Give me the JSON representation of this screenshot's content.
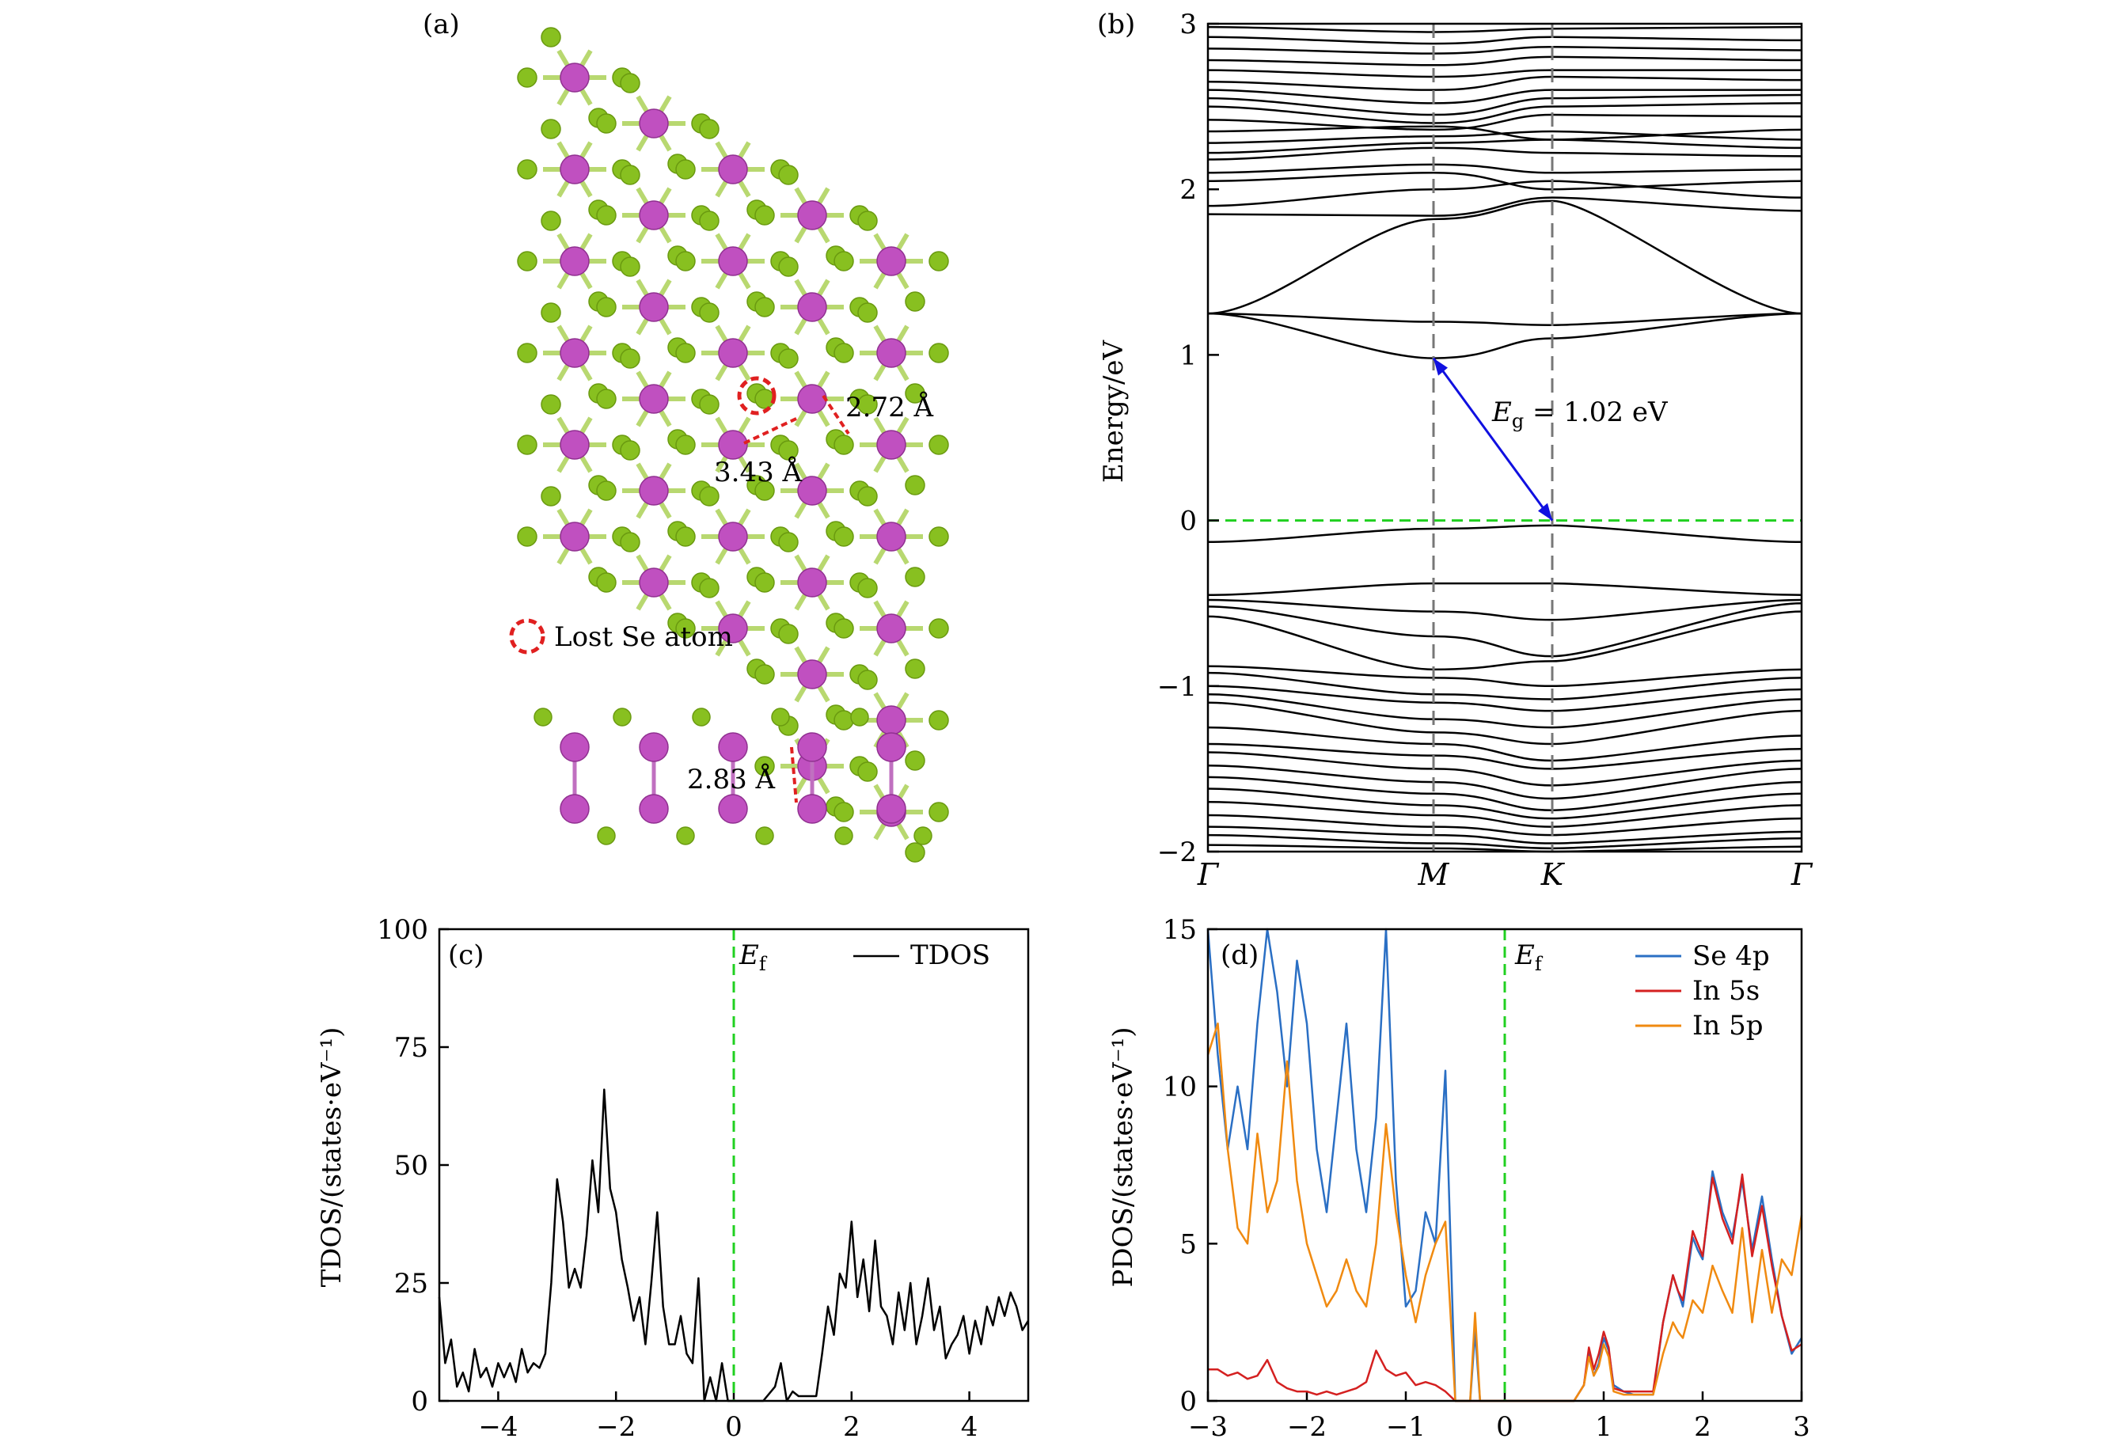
{
  "figure": {
    "panels": {
      "a": {
        "label": "(a)",
        "legend_text": "Lost Se atom",
        "distance_top": "2.72 Å",
        "distance_mid": "3.43 Å",
        "distance_side": "2.83 Å",
        "colors": {
          "in_atom": "#c050c0",
          "se_atom": "#88c020",
          "marker": "#e02020"
        }
      }
    }
  },
  "chart_data": [
    {
      "panel": "(b)",
      "type": "line",
      "title": "",
      "ylabel": "Energy/eV",
      "ylim": [
        -2,
        3
      ],
      "yticks": [
        "3",
        "2",
        "1",
        "0",
        "−1",
        "−2"
      ],
      "xticks": [
        "Γ",
        "M",
        "K",
        "Γ"
      ],
      "fermi_level": 0,
      "gap_label_main": "E",
      "gap_label_sub": "g",
      "gap_label_value": " = 1.02 eV",
      "gap": {
        "from": [
          0.38,
          0.98
        ],
        "to": [
          0.58,
          0
        ]
      },
      "bands": [
        {
          "name": "cb1",
          "y": [
            1.25,
            0.98,
            1.1,
            1.25
          ]
        },
        {
          "name": "cb2",
          "y": [
            1.25,
            1.2,
            1.18,
            1.25
          ]
        },
        {
          "name": "cb3",
          "y": [
            1.25,
            1.82,
            1.93,
            1.25
          ]
        },
        {
          "name": "cb4",
          "y": [
            1.85,
            1.84,
            1.95,
            1.87
          ]
        },
        {
          "name": "cb5",
          "y": [
            1.9,
            2.0,
            2.05,
            1.95
          ]
        },
        {
          "name": "cb6",
          "y": [
            2.05,
            2.1,
            2.0,
            2.05
          ]
        },
        {
          "name": "cb7",
          "y": [
            2.1,
            2.15,
            2.1,
            2.12
          ]
        },
        {
          "name": "cb8",
          "y": [
            2.18,
            2.25,
            2.22,
            2.2
          ]
        },
        {
          "name": "cb9",
          "y": [
            2.22,
            2.28,
            2.3,
            2.25
          ]
        },
        {
          "name": "cb10",
          "y": [
            2.28,
            2.32,
            2.35,
            2.3
          ]
        },
        {
          "name": "cb11",
          "y": [
            2.35,
            2.38,
            2.3,
            2.36
          ]
        },
        {
          "name": "cb12",
          "y": [
            2.42,
            2.36,
            2.45,
            2.44
          ]
        },
        {
          "name": "cb13",
          "y": [
            2.5,
            2.4,
            2.5,
            2.52
          ]
        },
        {
          "name": "cb14",
          "y": [
            2.55,
            2.45,
            2.55,
            2.57
          ]
        },
        {
          "name": "cb15",
          "y": [
            2.6,
            2.52,
            2.6,
            2.6
          ]
        },
        {
          "name": "cb16",
          "y": [
            2.65,
            2.6,
            2.68,
            2.66
          ]
        },
        {
          "name": "cb17",
          "y": [
            2.72,
            2.68,
            2.72,
            2.72
          ]
        },
        {
          "name": "cb18",
          "y": [
            2.78,
            2.75,
            2.8,
            2.78
          ]
        },
        {
          "name": "cb19",
          "y": [
            2.85,
            2.82,
            2.86,
            2.84
          ]
        },
        {
          "name": "cb20",
          "y": [
            2.92,
            2.88,
            2.92,
            2.9
          ]
        },
        {
          "name": "cb21",
          "y": [
            2.98,
            2.95,
            2.97,
            2.98
          ]
        },
        {
          "name": "vb0",
          "y": [
            -0.13,
            -0.05,
            -0.03,
            -0.13
          ]
        },
        {
          "name": "vb1",
          "y": [
            -0.45,
            -0.38,
            -0.38,
            -0.45
          ]
        },
        {
          "name": "vb2",
          "y": [
            -0.48,
            -0.55,
            -0.6,
            -0.48
          ]
        },
        {
          "name": "vb3",
          "y": [
            -0.52,
            -0.7,
            -0.82,
            -0.5
          ]
        },
        {
          "name": "vb4",
          "y": [
            -0.58,
            -0.9,
            -0.85,
            -0.55
          ]
        },
        {
          "name": "vb5",
          "y": [
            -0.88,
            -0.95,
            -1.0,
            -0.9
          ]
        },
        {
          "name": "vb6",
          "y": [
            -0.92,
            -1.05,
            -1.08,
            -0.95
          ]
        },
        {
          "name": "vb7",
          "y": [
            -1.0,
            -1.1,
            -1.15,
            -1.02
          ]
        },
        {
          "name": "vb8",
          "y": [
            -1.05,
            -1.2,
            -1.25,
            -1.08
          ]
        },
        {
          "name": "vb9",
          "y": [
            -1.1,
            -1.28,
            -1.35,
            -1.15
          ]
        },
        {
          "name": "vb10",
          "y": [
            -1.25,
            -1.35,
            -1.45,
            -1.3
          ]
        },
        {
          "name": "vb11",
          "y": [
            -1.35,
            -1.42,
            -1.5,
            -1.38
          ]
        },
        {
          "name": "vb12",
          "y": [
            -1.4,
            -1.5,
            -1.6,
            -1.45
          ]
        },
        {
          "name": "vb13",
          "y": [
            -1.48,
            -1.58,
            -1.68,
            -1.5
          ]
        },
        {
          "name": "vb14",
          "y": [
            -1.55,
            -1.65,
            -1.75,
            -1.58
          ]
        },
        {
          "name": "vb15",
          "y": [
            -1.62,
            -1.72,
            -1.8,
            -1.65
          ]
        },
        {
          "name": "vb16",
          "y": [
            -1.7,
            -1.78,
            -1.85,
            -1.72
          ]
        },
        {
          "name": "vb17",
          "y": [
            -1.78,
            -1.85,
            -1.9,
            -1.8
          ]
        },
        {
          "name": "vb18",
          "y": [
            -1.85,
            -1.9,
            -1.95,
            -1.88
          ]
        },
        {
          "name": "vb19",
          "y": [
            -1.9,
            -1.95,
            -1.98,
            -1.92
          ]
        },
        {
          "name": "vb20",
          "y": [
            -1.96,
            -1.98,
            -2.0,
            -1.97
          ]
        }
      ]
    },
    {
      "panel": "(c)",
      "type": "line",
      "title": "",
      "ylabel": "TDOS/(states·eV⁻¹)",
      "xlim": [
        -5,
        5
      ],
      "ylim": [
        0,
        100
      ],
      "xticks": [
        "−4",
        "−2",
        "0",
        "2",
        "4"
      ],
      "yticks": [
        "0",
        "25",
        "50",
        "75",
        "100"
      ],
      "fermi_label_main": "E",
      "fermi_label_sub": "f",
      "series": [
        {
          "name": "TDOS",
          "color": "#000000",
          "x": [
            -5.0,
            -4.9,
            -4.8,
            -4.7,
            -4.6,
            -4.5,
            -4.4,
            -4.3,
            -4.2,
            -4.1,
            -4.0,
            -3.9,
            -3.8,
            -3.7,
            -3.6,
            -3.5,
            -3.4,
            -3.3,
            -3.2,
            -3.1,
            -3.0,
            -2.9,
            -2.8,
            -2.7,
            -2.6,
            -2.5,
            -2.4,
            -2.3,
            -2.2,
            -2.1,
            -2.0,
            -1.9,
            -1.8,
            -1.7,
            -1.6,
            -1.5,
            -1.4,
            -1.3,
            -1.2,
            -1.1,
            -1.0,
            -0.9,
            -0.8,
            -0.7,
            -0.6,
            -0.5,
            -0.4,
            -0.3,
            -0.2,
            -0.1,
            0.0,
            0.5,
            0.7,
            0.8,
            0.9,
            1.0,
            1.1,
            1.2,
            1.3,
            1.4,
            1.5,
            1.6,
            1.7,
            1.8,
            1.9,
            2.0,
            2.1,
            2.2,
            2.3,
            2.4,
            2.5,
            2.6,
            2.7,
            2.8,
            2.9,
            3.0,
            3.1,
            3.2,
            3.3,
            3.4,
            3.5,
            3.6,
            3.7,
            3.8,
            3.9,
            4.0,
            4.1,
            4.2,
            4.3,
            4.4,
            4.5,
            4.6,
            4.7,
            4.8,
            4.9,
            5.0
          ],
          "y": [
            22,
            8,
            13,
            3,
            6,
            2,
            11,
            5,
            7,
            3,
            8,
            5,
            8,
            4,
            11,
            6,
            8,
            7,
            10,
            25,
            47,
            38,
            24,
            28,
            24,
            35,
            51,
            40,
            66,
            45,
            40,
            30,
            24,
            17,
            22,
            12,
            25,
            40,
            20,
            12,
            12,
            18,
            10,
            8,
            26,
            0,
            5,
            0,
            8,
            0,
            0,
            0,
            3,
            8,
            0,
            2,
            1,
            1,
            1,
            1,
            10,
            20,
            14,
            27,
            24,
            38,
            22,
            30,
            19,
            34,
            20,
            18,
            12,
            23,
            15,
            25,
            12,
            18,
            26,
            15,
            20,
            9,
            12,
            14,
            18,
            10,
            17,
            12,
            20,
            16,
            22,
            18,
            23,
            20,
            15,
            17
          ]
        }
      ]
    },
    {
      "panel": "(d)",
      "type": "line",
      "title": "",
      "ylabel": "PDOS/(states·eV⁻¹)",
      "xlim": [
        -3,
        3
      ],
      "ylim": [
        0,
        15
      ],
      "xticks": [
        "−3",
        "−2",
        "−1",
        "0",
        "1",
        "2",
        "3"
      ],
      "yticks": [
        "0",
        "5",
        "10",
        "15"
      ],
      "fermi_label_main": "E",
      "fermi_label_sub": "f",
      "series": [
        {
          "name": "Se 4p",
          "color": "#2a6fc4",
          "x": [
            -3.0,
            -2.9,
            -2.8,
            -2.7,
            -2.6,
            -2.5,
            -2.4,
            -2.3,
            -2.2,
            -2.1,
            -2.0,
            -1.9,
            -1.8,
            -1.7,
            -1.6,
            -1.5,
            -1.4,
            -1.3,
            -1.2,
            -1.1,
            -1.0,
            -0.9,
            -0.8,
            -0.7,
            -0.6,
            -0.5,
            -0.45,
            -0.4,
            -0.35,
            -0.3,
            -0.25,
            -0.2,
            0.0,
            0.7,
            0.8,
            0.85,
            0.9,
            0.95,
            1.0,
            1.05,
            1.1,
            1.2,
            1.3,
            1.5,
            1.6,
            1.7,
            1.75,
            1.8,
            1.9,
            1.95,
            2.0,
            2.1,
            2.2,
            2.3,
            2.4,
            2.5,
            2.6,
            2.7,
            2.8,
            2.9,
            3.0
          ],
          "y": [
            15,
            11,
            8,
            10,
            8,
            12,
            15,
            13,
            10,
            14,
            12,
            8,
            6,
            9,
            12,
            8,
            6,
            9,
            16,
            7,
            3,
            3.5,
            6,
            5,
            10.5,
            0,
            0,
            0,
            0,
            2.2,
            0,
            0,
            0,
            0,
            0.5,
            1.5,
            0.8,
            1.2,
            2.0,
            1.6,
            0.5,
            0.3,
            0.2,
            0.2,
            2.5,
            4.0,
            3.5,
            3.0,
            5.2,
            4.8,
            4.5,
            7.3,
            6.0,
            5.2,
            7.0,
            4.8,
            6.5,
            4.5,
            2.7,
            1.5,
            2.0
          ]
        },
        {
          "name": "In 5s",
          "color": "#d42020",
          "x": [
            -3.0,
            -2.9,
            -2.8,
            -2.7,
            -2.6,
            -2.5,
            -2.4,
            -2.3,
            -2.2,
            -2.1,
            -2.0,
            -1.9,
            -1.8,
            -1.7,
            -1.6,
            -1.5,
            -1.4,
            -1.3,
            -1.2,
            -1.1,
            -1.0,
            -0.9,
            -0.8,
            -0.7,
            -0.6,
            -0.5,
            -0.45,
            -0.4,
            -0.35,
            -0.3,
            -0.25,
            -0.2,
            0.0,
            0.7,
            0.8,
            0.85,
            0.9,
            0.95,
            1.0,
            1.05,
            1.1,
            1.2,
            1.3,
            1.5,
            1.6,
            1.7,
            1.75,
            1.8,
            1.9,
            1.95,
            2.0,
            2.1,
            2.2,
            2.3,
            2.4,
            2.5,
            2.6,
            2.7,
            2.8,
            2.9,
            3.0
          ],
          "y": [
            1.0,
            1.0,
            0.8,
            0.9,
            0.7,
            0.8,
            1.3,
            0.6,
            0.4,
            0.3,
            0.3,
            0.2,
            0.3,
            0.2,
            0.3,
            0.4,
            0.6,
            1.6,
            1.0,
            0.8,
            0.9,
            0.5,
            0.6,
            0.5,
            0.3,
            0,
            0,
            0,
            0,
            0,
            0,
            0,
            0,
            0,
            0.5,
            1.7,
            1.0,
            1.5,
            2.2,
            1.7,
            0.4,
            0.3,
            0.3,
            0.3,
            2.5,
            4.0,
            3.5,
            3.2,
            5.4,
            5.0,
            4.6,
            7.1,
            5.8,
            5.0,
            7.2,
            4.6,
            6.2,
            4.3,
            2.7,
            1.6,
            1.8
          ]
        },
        {
          "name": "In 5p",
          "color": "#f08a10",
          "x": [
            -3.0,
            -2.9,
            -2.8,
            -2.7,
            -2.6,
            -2.5,
            -2.4,
            -2.3,
            -2.2,
            -2.1,
            -2.0,
            -1.9,
            -1.8,
            -1.7,
            -1.6,
            -1.5,
            -1.4,
            -1.3,
            -1.2,
            -1.1,
            -1.0,
            -0.9,
            -0.8,
            -0.7,
            -0.6,
            -0.5,
            -0.45,
            -0.4,
            -0.35,
            -0.3,
            -0.25,
            -0.2,
            0.0,
            0.7,
            0.8,
            0.85,
            0.9,
            0.95,
            1.0,
            1.05,
            1.1,
            1.2,
            1.3,
            1.5,
            1.6,
            1.7,
            1.75,
            1.8,
            1.9,
            1.95,
            2.0,
            2.1,
            2.2,
            2.3,
            2.4,
            2.5,
            2.6,
            2.7,
            2.8,
            2.9,
            3.0
          ],
          "y": [
            11,
            12,
            8,
            5.5,
            5,
            8.5,
            6,
            7,
            10.8,
            7,
            5,
            4,
            3,
            3.5,
            4.5,
            3.5,
            3,
            5,
            8.8,
            6,
            4,
            2.5,
            4,
            5,
            5.7,
            0,
            0,
            0,
            0,
            2.8,
            0,
            0,
            0,
            0,
            0.5,
            1.4,
            0.8,
            1.1,
            1.8,
            1.4,
            0.3,
            0.2,
            0.2,
            0.2,
            1.5,
            2.5,
            2.2,
            2.0,
            3.2,
            3.0,
            2.8,
            4.3,
            3.5,
            2.8,
            5.5,
            2.5,
            4.8,
            2.8,
            4.5,
            4.0,
            5.9
          ]
        }
      ]
    }
  ]
}
